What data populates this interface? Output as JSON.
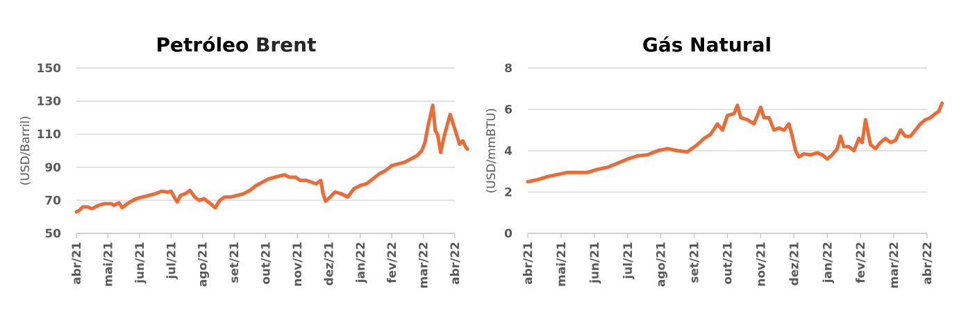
{
  "chart_data": [
    {
      "type": "line",
      "title": "Petróleo Brent",
      "title_parts": [
        "Petróleo",
        "Brent"
      ],
      "ylabel": "(USD/Barril)",
      "xlabel": "",
      "ylim": [
        50,
        150
      ],
      "yticks": [
        50,
        70,
        90,
        110,
        130,
        150
      ],
      "x_ticks": [
        "abr/21",
        "mai/21",
        "jun/21",
        "jul/21",
        "ago/21",
        "set/21",
        "out/21",
        "nov/21",
        "dez/21",
        "jan/22",
        "fev/22",
        "mar/22",
        "abr/22"
      ],
      "grid": true,
      "series": [
        {
          "color": "#ed6a35",
          "points": [
            [
              0,
              63
            ],
            [
              0.1,
              64
            ],
            [
              0.2,
              66
            ],
            [
              0.35,
              66
            ],
            [
              0.5,
              65
            ],
            [
              0.7,
              67
            ],
            [
              0.9,
              68
            ],
            [
              1.1,
              68
            ],
            [
              1.2,
              67
            ],
            [
              1.35,
              68.5
            ],
            [
              1.45,
              65.5
            ],
            [
              1.55,
              67
            ],
            [
              1.7,
              69
            ],
            [
              1.9,
              71
            ],
            [
              2.1,
              72
            ],
            [
              2.3,
              73
            ],
            [
              2.5,
              74
            ],
            [
              2.7,
              75.5
            ],
            [
              2.9,
              75
            ],
            [
              3.0,
              75.5
            ],
            [
              3.1,
              72
            ],
            [
              3.2,
              69
            ],
            [
              3.3,
              73
            ],
            [
              3.45,
              74
            ],
            [
              3.6,
              76
            ],
            [
              3.75,
              72
            ],
            [
              3.9,
              70
            ],
            [
              4.05,
              71
            ],
            [
              4.25,
              68
            ],
            [
              4.4,
              65.5
            ],
            [
              4.55,
              70
            ],
            [
              4.7,
              72
            ],
            [
              4.9,
              72
            ],
            [
              5.1,
              73
            ],
            [
              5.3,
              74
            ],
            [
              5.5,
              76
            ],
            [
              5.7,
              79
            ],
            [
              5.9,
              81
            ],
            [
              6.1,
              83
            ],
            [
              6.3,
              84
            ],
            [
              6.5,
              85
            ],
            [
              6.6,
              85.5
            ],
            [
              6.75,
              84
            ],
            [
              6.95,
              84
            ],
            [
              7.1,
              82
            ],
            [
              7.3,
              82
            ],
            [
              7.45,
              81
            ],
            [
              7.6,
              80
            ],
            [
              7.75,
              82
            ],
            [
              7.82,
              74
            ],
            [
              7.9,
              69.5
            ],
            [
              8.05,
              72
            ],
            [
              8.2,
              75
            ],
            [
              8.4,
              74
            ],
            [
              8.6,
              72
            ],
            [
              8.8,
              77
            ],
            [
              9.0,
              79
            ],
            [
              9.2,
              80
            ],
            [
              9.4,
              83
            ],
            [
              9.6,
              86
            ],
            [
              9.8,
              88
            ],
            [
              10.0,
              91
            ],
            [
              10.2,
              92
            ],
            [
              10.4,
              93
            ],
            [
              10.6,
              95
            ],
            [
              10.8,
              97
            ],
            [
              10.95,
              100
            ],
            [
              11.05,
              105
            ],
            [
              11.15,
              115
            ],
            [
              11.3,
              127.5
            ],
            [
              11.38,
              112
            ],
            [
              11.45,
              110
            ],
            [
              11.55,
              99
            ],
            [
              11.65,
              108
            ],
            [
              11.75,
              115
            ],
            [
              11.85,
              122
            ],
            [
              11.95,
              116
            ],
            [
              12.05,
              110
            ],
            [
              12.15,
              104
            ],
            [
              12.25,
              106
            ],
            [
              12.35,
              102
            ],
            [
              12.4,
              101
            ]
          ]
        }
      ]
    },
    {
      "type": "line",
      "title": "Gás Natural",
      "ylabel": "(USD/mmBTU)",
      "xlabel": "",
      "ylim": [
        0,
        8
      ],
      "yticks": [
        0,
        2,
        4,
        6,
        8
      ],
      "x_ticks": [
        "abr/21",
        "mai/21",
        "jun/21",
        "jul/21",
        "ago/21",
        "set/21",
        "out/21",
        "nov/21",
        "dez/21",
        "jan/22",
        "fev/22",
        "mar/22",
        "abr/22"
      ],
      "grid": true,
      "series": [
        {
          "color": "#ed6a35",
          "points": [
            [
              0,
              2.5
            ],
            [
              0.3,
              2.6
            ],
            [
              0.6,
              2.75
            ],
            [
              0.9,
              2.85
            ],
            [
              1.2,
              2.95
            ],
            [
              1.5,
              2.95
            ],
            [
              1.8,
              2.95
            ],
            [
              2.1,
              3.1
            ],
            [
              2.4,
              3.2
            ],
            [
              2.7,
              3.4
            ],
            [
              3.0,
              3.6
            ],
            [
              3.3,
              3.75
            ],
            [
              3.6,
              3.8
            ],
            [
              3.9,
              4.0
            ],
            [
              4.2,
              4.1
            ],
            [
              4.5,
              4.0
            ],
            [
              4.8,
              3.95
            ],
            [
              5.1,
              4.3
            ],
            [
              5.3,
              4.6
            ],
            [
              5.5,
              4.8
            ],
            [
              5.7,
              5.3
            ],
            [
              5.85,
              5.0
            ],
            [
              6.0,
              5.7
            ],
            [
              6.2,
              5.8
            ],
            [
              6.3,
              6.2
            ],
            [
              6.4,
              5.6
            ],
            [
              6.6,
              5.5
            ],
            [
              6.8,
              5.3
            ],
            [
              7.0,
              6.1
            ],
            [
              7.1,
              5.6
            ],
            [
              7.25,
              5.6
            ],
            [
              7.4,
              5.0
            ],
            [
              7.55,
              5.1
            ],
            [
              7.7,
              5.0
            ],
            [
              7.85,
              5.3
            ],
            [
              7.95,
              4.7
            ],
            [
              8.05,
              4.0
            ],
            [
              8.15,
              3.7
            ],
            [
              8.3,
              3.85
            ],
            [
              8.5,
              3.8
            ],
            [
              8.7,
              3.9
            ],
            [
              8.85,
              3.8
            ],
            [
              9.0,
              3.6
            ],
            [
              9.15,
              3.8
            ],
            [
              9.3,
              4.1
            ],
            [
              9.4,
              4.7
            ],
            [
              9.5,
              4.2
            ],
            [
              9.65,
              4.2
            ],
            [
              9.8,
              4.0
            ],
            [
              9.95,
              4.6
            ],
            [
              10.05,
              4.4
            ],
            [
              10.15,
              5.5
            ],
            [
              10.3,
              4.3
            ],
            [
              10.45,
              4.1
            ],
            [
              10.6,
              4.4
            ],
            [
              10.75,
              4.6
            ],
            [
              10.9,
              4.4
            ],
            [
              11.05,
              4.5
            ],
            [
              11.2,
              5.0
            ],
            [
              11.35,
              4.7
            ],
            [
              11.5,
              4.7
            ],
            [
              11.65,
              5.0
            ],
            [
              11.8,
              5.3
            ],
            [
              11.95,
              5.5
            ],
            [
              12.1,
              5.6
            ],
            [
              12.25,
              5.8
            ],
            [
              12.35,
              5.9
            ],
            [
              12.45,
              6.3
            ]
          ]
        }
      ]
    }
  ]
}
